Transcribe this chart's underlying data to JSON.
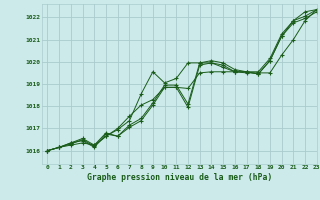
{
  "title": "Graphe pression niveau de la mer (hPa)",
  "bg_color": "#cceaea",
  "grid_color": "#aacccc",
  "line_color": "#1a5c1a",
  "marker_color": "#1a5c1a",
  "xlim": [
    -0.5,
    23
  ],
  "ylim": [
    1015.4,
    1022.6
  ],
  "yticks": [
    1016,
    1017,
    1018,
    1019,
    1020,
    1021,
    1022
  ],
  "xticks": [
    0,
    1,
    2,
    3,
    4,
    5,
    6,
    7,
    8,
    9,
    10,
    11,
    12,
    13,
    14,
    15,
    16,
    17,
    18,
    19,
    20,
    21,
    22,
    23
  ],
  "series": [
    [
      1016.0,
      1016.15,
      1016.3,
      1016.5,
      1016.2,
      1016.65,
      1017.0,
      1017.55,
      1018.05,
      1018.3,
      1018.85,
      1018.85,
      1018.8,
      1019.5,
      1019.55,
      1019.55,
      1019.55,
      1019.5,
      1019.5,
      1019.5,
      1020.3,
      1021.0,
      1021.85,
      1022.35
    ],
    [
      1016.0,
      1016.15,
      1016.35,
      1016.55,
      1016.25,
      1016.8,
      1016.65,
      1017.15,
      1017.45,
      1018.15,
      1018.95,
      1018.95,
      1018.1,
      1019.95,
      1020.05,
      1019.95,
      1019.65,
      1019.55,
      1019.55,
      1020.15,
      1021.25,
      1021.85,
      1022.05,
      1022.35
    ],
    [
      1016.0,
      1016.15,
      1016.35,
      1016.45,
      1016.15,
      1016.75,
      1016.65,
      1017.05,
      1017.35,
      1018.05,
      1018.85,
      1018.85,
      1017.95,
      1019.85,
      1019.95,
      1019.85,
      1019.55,
      1019.55,
      1019.45,
      1020.05,
      1021.15,
      1021.75,
      1021.95,
      1022.25
    ],
    [
      1016.0,
      1016.15,
      1016.25,
      1016.35,
      1016.25,
      1016.65,
      1016.95,
      1017.35,
      1018.55,
      1019.55,
      1019.05,
      1019.25,
      1019.95,
      1019.95,
      1019.95,
      1019.75,
      1019.55,
      1019.55,
      1019.45,
      1020.05,
      1021.15,
      1021.85,
      1022.25,
      1022.35
    ]
  ]
}
